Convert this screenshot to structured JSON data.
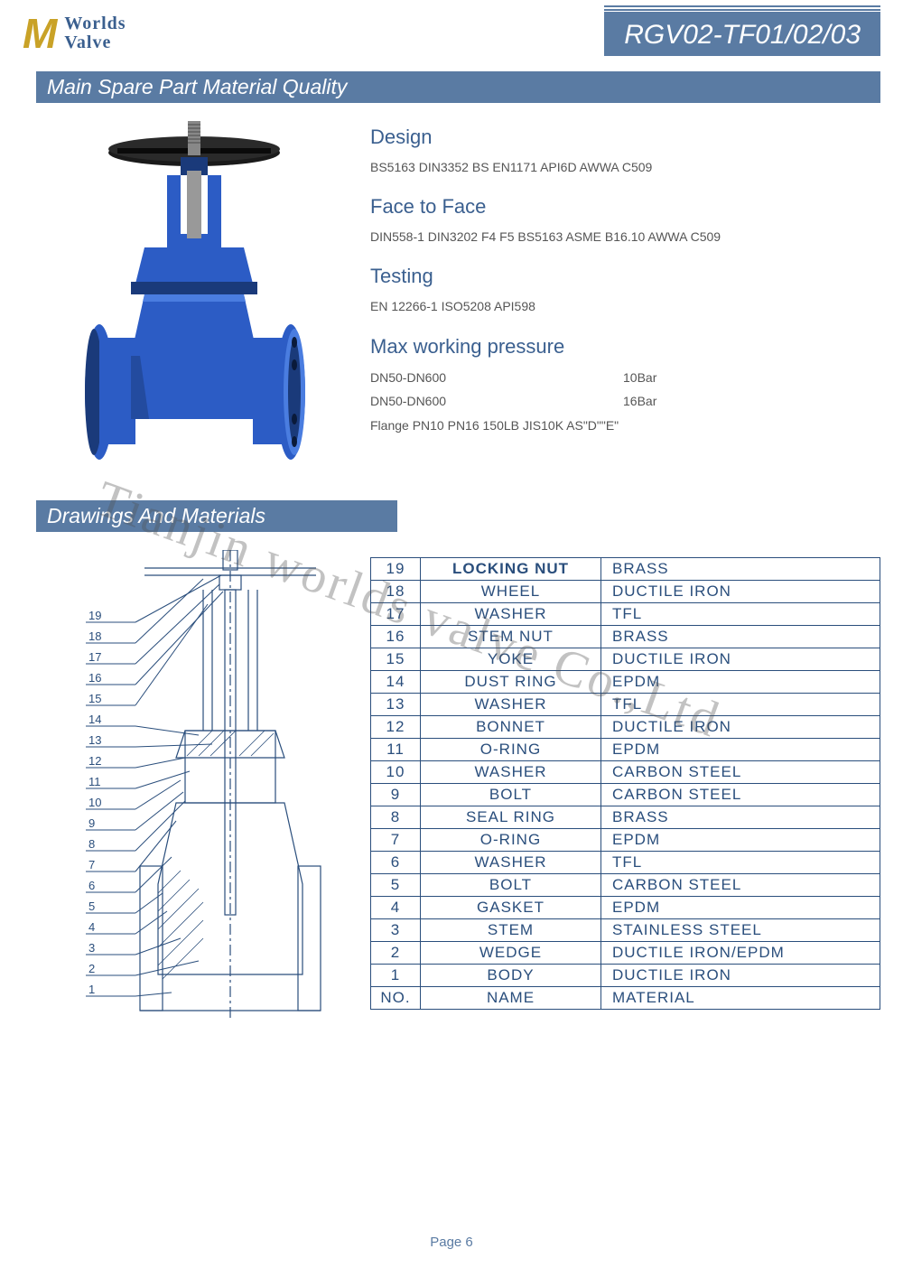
{
  "logo": {
    "mark": "M",
    "line1": "Worlds",
    "line2": "Valve"
  },
  "model": "RGV02-TF01/02/03",
  "section1": "Main Spare Part Material Quality",
  "section2": "Drawings And Materials",
  "specs": {
    "design_h": "Design",
    "design": "BS5163 DIN3352  BS EN1171  API6D  AWWA C509",
    "face_h": "Face to Face",
    "face": "DIN558-1     DIN3202 F4 F5  BS5163  ASME B16.10  AWWA C509",
    "test_h": "Testing",
    "test": "EN 12266-1  ISO5208  API598",
    "press_h": "Max working pressure",
    "press_rows": [
      {
        "a": "DN50-DN600",
        "b": "10Bar"
      },
      {
        "a": "DN50-DN600",
        "b": "16Bar"
      }
    ],
    "flange": "Flange     PN10 PN16 150LB  JIS10K   AS\"D\"\"E\""
  },
  "materials": [
    {
      "no": "19",
      "name": "LOCKING NUT",
      "mat": "BRASS"
    },
    {
      "no": "18",
      "name": "WHEEL",
      "mat": "DUCTILE  IRON"
    },
    {
      "no": "17",
      "name": "WASHER",
      "mat": "TFL"
    },
    {
      "no": "16",
      "name": "STEM  NUT",
      "mat": "BRASS"
    },
    {
      "no": "15",
      "name": "YOKE",
      "mat": "DUCTILE  IRON"
    },
    {
      "no": "14",
      "name": "DUST  RING",
      "mat": "EPDM"
    },
    {
      "no": "13",
      "name": "WASHER",
      "mat": "TFL"
    },
    {
      "no": "12",
      "name": "BONNET",
      "mat": "DUCTILE  IRON"
    },
    {
      "no": "11",
      "name": "O-RING",
      "mat": "EPDM"
    },
    {
      "no": "10",
      "name": "WASHER",
      "mat": "CARBON  STEEL"
    },
    {
      "no": "9",
      "name": "BOLT",
      "mat": "CARBON  STEEL"
    },
    {
      "no": "8",
      "name": "SEAL  RING",
      "mat": "BRASS"
    },
    {
      "no": "7",
      "name": "O-RING",
      "mat": "EPDM"
    },
    {
      "no": "6",
      "name": "WASHER",
      "mat": "TFL"
    },
    {
      "no": "5",
      "name": "BOLT",
      "mat": "CARBON  STEEL"
    },
    {
      "no": "4",
      "name": "GASKET",
      "mat": "EPDM"
    },
    {
      "no": "3",
      "name": "STEM",
      "mat": "STAINLESS  STEEL"
    },
    {
      "no": "2",
      "name": "WEDGE",
      "mat": "DUCTILE  IRON/EPDM"
    },
    {
      "no": "1",
      "name": "BODY",
      "mat": "DUCTILE  IRON"
    },
    {
      "no": "NO.",
      "name": "NAME",
      "mat": "MATERIAL"
    }
  ],
  "labels": [
    "19",
    "18",
    "17",
    "16",
    "15",
    "14",
    "13",
    "12",
    "11",
    "10",
    "9",
    "8",
    "7",
    "6",
    "5",
    "4",
    "3",
    "2",
    "1"
  ],
  "watermark": "Tianjin worlds valve Co.,Ltd",
  "page": "Page 6",
  "colors": {
    "bar": "#5a7ba3",
    "heading": "#3a5f8f",
    "table_line": "#2a4e7c",
    "valve_body": "#2c5cc5",
    "valve_dark": "#1a3a7a",
    "wheel": "#1a1a1a"
  }
}
